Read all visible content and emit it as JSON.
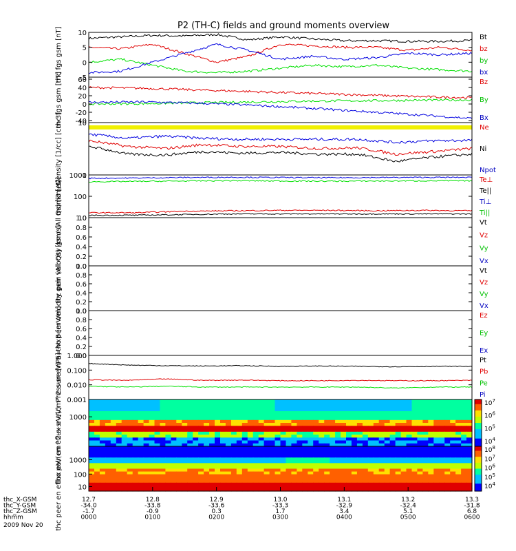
{
  "title": "P2 (TH-C) fields and ground moments overview",
  "colors": {
    "black": "#000000",
    "red": "#e00000",
    "green": "#00e000",
    "blue": "#0000e0",
    "yellow": "#f0f000"
  },
  "chart_data": [
    {
      "type": "line",
      "ylabel": "thc fgs gsm [nT]",
      "ylim": [
        -5,
        10
      ],
      "yticks": [
        "10",
        "5",
        "0",
        "-5"
      ],
      "series": [
        {
          "name": "Bt",
          "color": "black",
          "values": [
            8,
            8.5,
            9,
            8.8,
            9.3,
            7.5,
            8.5,
            7.8,
            7.2,
            7.2,
            7,
            7,
            7.3
          ]
        },
        {
          "name": "bz",
          "color": "red",
          "values": [
            5,
            4.5,
            6,
            3,
            0,
            2,
            6,
            5.5,
            5,
            5,
            4,
            5,
            4
          ]
        },
        {
          "name": "by",
          "color": "green",
          "values": [
            0,
            1,
            -1,
            -3,
            -3.5,
            -3,
            -2,
            -1,
            -1.5,
            -1,
            -2,
            -2.5,
            -3
          ]
        },
        {
          "name": "bx",
          "color": "blue",
          "values": [
            -3.5,
            -3,
            0,
            3,
            6,
            4,
            1,
            2,
            1,
            1.5,
            3,
            2.5,
            3
          ]
        }
      ]
    },
    {
      "type": "line",
      "ylabel": "thc fgs gsm [nT]",
      "ylim": [
        -45,
        65
      ],
      "yticks": [
        "60",
        "40",
        "20",
        "0",
        "-20",
        "-40"
      ],
      "series": [
        {
          "name": "Bz",
          "color": "red",
          "values": [
            40,
            38,
            34,
            30,
            26,
            22,
            18,
            15
          ]
        },
        {
          "name": "By",
          "color": "green",
          "values": [
            0,
            1,
            3,
            5,
            7,
            8,
            9,
            10
          ]
        },
        {
          "name": "Bx",
          "color": "blue",
          "values": [
            4,
            5,
            2,
            -3,
            -10,
            -18,
            -26,
            -35
          ]
        }
      ]
    },
    {
      "type": "line",
      "ylabel": "Density [1/cc] [cm-3]",
      "ylim": [
        1,
        10
      ],
      "yscale": "log",
      "yticks": [
        "10",
        "1"
      ],
      "series": [
        {
          "name": "Ne",
          "color": "red",
          "values": [
            4.5,
            3.5,
            3.2,
            3.8,
            3.5,
            3.5,
            3.2,
            3.3,
            2.5,
            2.8,
            3.2
          ]
        },
        {
          "name": "Ni",
          "color": "black",
          "values": [
            3.5,
            2.5,
            2.4,
            2.8,
            2.6,
            2.7,
            2.5,
            2.5,
            1.8,
            2.2,
            2.5
          ]
        },
        {
          "name": "Npot",
          "color": "blue",
          "values": [
            6,
            5,
            5.5,
            5,
            4.8,
            4.8,
            4.8,
            4.8,
            4.2,
            4.5,
            4.6
          ]
        }
      ],
      "band": {
        "name": "Npot",
        "color": "yellow"
      }
    },
    {
      "type": "line",
      "ylabel": "mom3 [eV]",
      "ylim": [
        10,
        1000
      ],
      "yscale": "log",
      "yticks": [
        "1000",
        "100",
        "10"
      ],
      "series": [
        {
          "name": "Te⊥",
          "color": "red",
          "values": [
            17,
            17,
            20,
            21,
            22,
            22,
            21,
            22,
            21
          ]
        },
        {
          "name": "Te||",
          "color": "black",
          "values": [
            13,
            13,
            14,
            15,
            15,
            15,
            15,
            15,
            15
          ]
        },
        {
          "name": "Ti⊥",
          "color": "blue",
          "values": [
            700,
            720,
            760,
            780,
            760,
            740,
            760,
            770,
            770
          ]
        },
        {
          "name": "Ti||",
          "color": "green",
          "values": [
            480,
            500,
            520,
            540,
            520,
            510,
            520,
            530,
            530
          ]
        }
      ]
    },
    {
      "type": "line",
      "ylabel": "thc peir velocity gsm (All Qs) [km/s]",
      "ylim": [
        0,
        1
      ],
      "yticks": [
        "1.0",
        "0.8",
        "0.6",
        "0.4",
        "0.2",
        "0.0"
      ],
      "series": [
        {
          "name": "Vt",
          "color": "black",
          "values": []
        },
        {
          "name": "Vz",
          "color": "red",
          "values": []
        },
        {
          "name": "Vy",
          "color": "green",
          "values": []
        },
        {
          "name": "Vx",
          "color": "blue",
          "values": []
        }
      ]
    },
    {
      "type": "line",
      "ylabel": "thc peer velocity gsm (All Qs) [km/s]",
      "ylim": [
        0,
        1
      ],
      "yticks": [
        "1.0",
        "0.8",
        "0.6",
        "0.4",
        "0.2",
        "0.0"
      ],
      "series": [
        {
          "name": "Vt",
          "color": "black",
          "values": []
        },
        {
          "name": "Vz",
          "color": "red",
          "values": []
        },
        {
          "name": "Vy",
          "color": "green",
          "values": []
        },
        {
          "name": "Vx",
          "color": "blue",
          "values": []
        }
      ]
    },
    {
      "type": "line",
      "ylabel": "E=-VxB [mV/m]",
      "ylim": [
        0,
        1
      ],
      "yticks": [
        "1.0",
        "0.8",
        "0.6",
        "0.4",
        "0.2",
        "0.0"
      ],
      "series": [
        {
          "name": "Ez",
          "color": "red",
          "values": []
        },
        {
          "name": "Ey",
          "color": "green",
          "values": []
        },
        {
          "name": "Ex",
          "color": "blue",
          "values": []
        }
      ]
    },
    {
      "type": "line",
      "ylabel": "Pressure [nPa]",
      "ylim": [
        0.001,
        1
      ],
      "yscale": "log",
      "yticks": [
        "1.000",
        "0.100",
        "0.010",
        "0.001"
      ],
      "series": [
        {
          "name": "Pt",
          "color": "black",
          "values": [
            0.28,
            0.22,
            0.2,
            0.19,
            0.2,
            0.18,
            0.19,
            0.18,
            0.17,
            0.18,
            0.18
          ]
        },
        {
          "name": "Pb",
          "color": "red",
          "values": [
            0.022,
            0.02,
            0.025,
            0.02,
            0.021,
            0.019,
            0.019,
            0.02,
            0.019,
            0.019,
            0.02
          ]
        },
        {
          "name": "Pe",
          "color": "green",
          "values": [
            0.008,
            0.007,
            0.008,
            0.007,
            0.007,
            0.007,
            0.007,
            0.007,
            0.006,
            0.007,
            0.007
          ]
        },
        {
          "name": "Pi",
          "color": "blue",
          "values": []
        }
      ]
    },
    {
      "type": "heatmap",
      "ylabel": "thc peir en eflux eV/(cm^2-s-sr-eV)",
      "yticks": [
        "1000"
      ],
      "colorbar": [
        "10^7",
        "10^6",
        "10^5",
        "10^4"
      ]
    },
    {
      "type": "heatmap",
      "ylabel": "thc peer en eflux eV/(cm^2-s-sr-eV)",
      "yticks": [
        "1000",
        "100",
        "10"
      ],
      "colorbar": [
        "10^8",
        "10^7",
        "10^6",
        "10^5",
        "10^4"
      ]
    }
  ],
  "x_axis": {
    "ticks": [
      {
        "x": "12.7",
        "y": "-34.0",
        "z": "-1.7",
        "t": "0000"
      },
      {
        "x": "12.8",
        "y": "-33.8",
        "z": "-0.9",
        "t": "0100"
      },
      {
        "x": "12.9",
        "y": "-33.6",
        "z": "0.3",
        "t": "0200"
      },
      {
        "x": "13.0",
        "y": "-33.3",
        "z": "1.7",
        "t": "0300"
      },
      {
        "x": "13.1",
        "y": "-32.9",
        "z": "3.4",
        "t": "0400"
      },
      {
        "x": "13.2",
        "y": "-32.4",
        "z": "5.1",
        "t": "0500"
      },
      {
        "x": "13.3",
        "y": "-31.8",
        "z": "6.8",
        "t": "0600"
      }
    ],
    "row_labels": [
      "thc_X-GSM",
      "thc_Y-GSM",
      "thc_Z-GSM",
      "hhmm"
    ],
    "date": "2009 Nov 20"
  }
}
